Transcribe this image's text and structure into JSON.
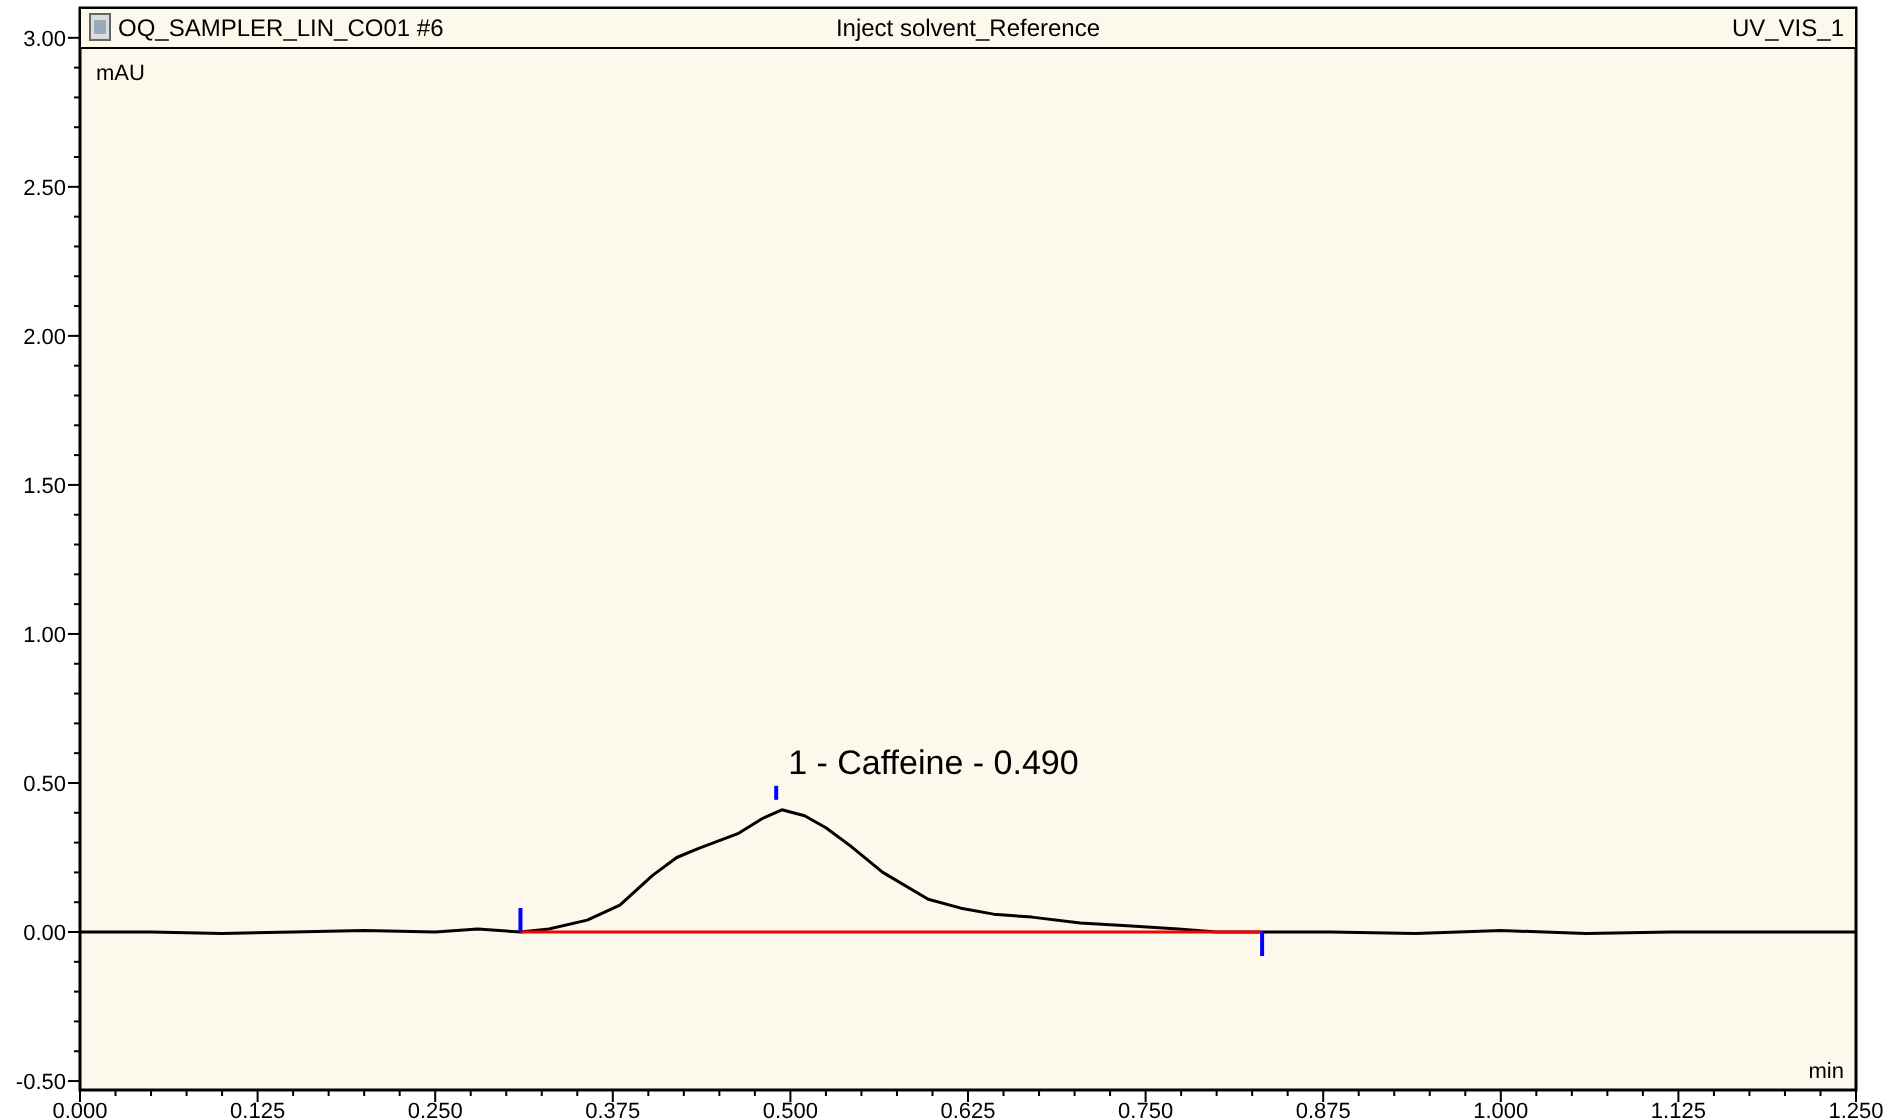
{
  "chart_data": {
    "type": "line",
    "title": "Inject solvent_Reference",
    "subtitle": "OQ_SAMPLER_LIN_CO01 #6",
    "xlabel": "min",
    "ylabel": "mAU",
    "annotations": [
      "UV_VIS_1",
      {
        "text": "1 - Caffeine - 0.490",
        "x": 0.49,
        "y": 0.41
      }
    ],
    "series": [
      {
        "color": "#000000",
        "x": [
          0,
          0.05,
          0.1,
          0.15,
          0.2,
          0.25,
          0.28,
          0.31,
          0.33,
          0.357,
          0.38,
          0.403,
          0.42,
          0.435,
          0.463,
          0.48,
          0.494,
          0.51,
          0.525,
          0.542,
          0.565,
          0.597,
          0.62,
          0.643,
          0.67,
          0.704,
          0.74,
          0.773,
          0.8,
          0.832,
          0.88,
          0.94,
          1.0,
          1.06,
          1.12,
          1.18,
          1.25
        ],
        "values": [
          0,
          0,
          -0.005,
          0,
          0.005,
          0,
          0.01,
          0,
          0.01,
          0.04,
          0.09,
          0.19,
          0.25,
          0.28,
          0.33,
          0.38,
          0.41,
          0.39,
          0.35,
          0.29,
          0.2,
          0.11,
          0.08,
          0.06,
          0.05,
          0.03,
          0.02,
          0.01,
          0,
          0,
          0,
          -0.005,
          0.005,
          -0.005,
          0,
          0,
          0
        ]
      },
      {
        "color": "#ff0000",
        "x": [
          0.31,
          0.832
        ],
        "values": [
          0,
          0
        ]
      }
    ],
    "xlim": [
      0,
      1.25
    ],
    "xticks": [
      {
        "value": 0,
        "label": "0.000"
      },
      0.125,
      {
        "value": 0.25,
        "label": "0.250"
      },
      0.375,
      {
        "value": 0.5,
        "label": "0.500"
      },
      0.625,
      {
        "value": 0.75,
        "label": "0.750"
      },
      0.875,
      {
        "value": 1,
        "label": "1.000"
      },
      1.125,
      {
        "value": 1.25,
        "label": "1.250"
      }
    ],
    "ylim": [
      -0.53,
      3.1
    ],
    "yticks": [
      {
        "value": -0.5,
        "label": "-0.50"
      },
      {
        "value": 0,
        "label": "0.00"
      },
      {
        "value": 0.5,
        "label": "0.50"
      },
      {
        "value": 1,
        "label": "1.00"
      },
      {
        "value": 1.5,
        "label": "1.50"
      },
      {
        "value": 2,
        "label": "2.00"
      },
      {
        "value": 2.5,
        "label": "2.50"
      },
      {
        "value": 3,
        "label": "3.00"
      }
    ],
    "grid": false,
    "marker": "none",
    "line_style": "solid"
  }
}
